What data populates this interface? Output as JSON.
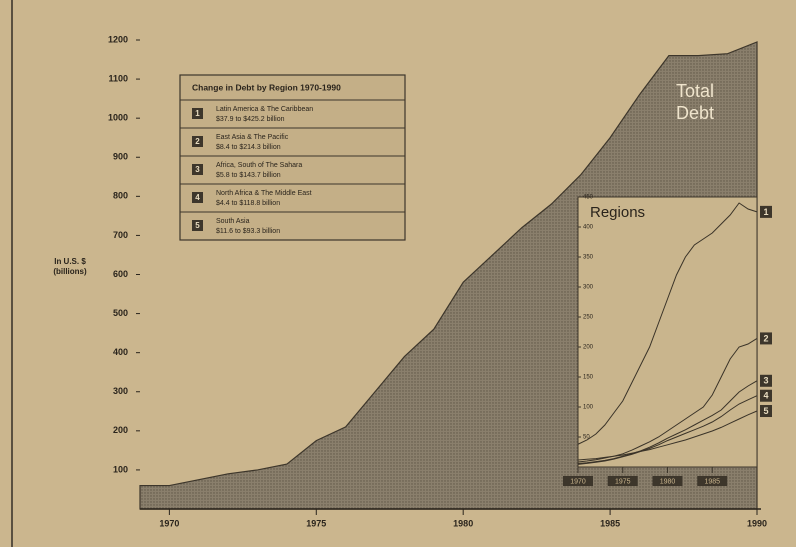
{
  "chart_data": [
    {
      "type": "area",
      "y_label": [
        "In U.S. $",
        "(billions)"
      ],
      "annotation_lines": [
        "Total",
        "Debt"
      ],
      "x": [
        1969,
        1970,
        1971,
        1972,
        1973,
        1974,
        1975,
        1976,
        1977,
        1978,
        1979,
        1980,
        1981,
        1982,
        1983,
        1984,
        1985,
        1986,
        1987,
        1988,
        1989,
        1990
      ],
      "values": [
        60,
        60,
        75,
        90,
        100,
        115,
        175,
        210,
        300,
        390,
        460,
        580,
        650,
        720,
        780,
        855,
        950,
        1060,
        1160,
        1160,
        1165,
        1195
      ],
      "color": "#8a7f6c",
      "xlim": [
        1969,
        1990
      ],
      "xticks": [
        1970,
        1975,
        1980,
        1985,
        1990
      ],
      "ylim": [
        0,
        1200
      ],
      "yticks": [
        100,
        200,
        300,
        400,
        500,
        600,
        700,
        800,
        900,
        1000,
        1100,
        1200
      ]
    },
    {
      "type": "line",
      "title": "Regions",
      "legend_title": "Change in Debt by Region  1970-1990",
      "x": [
        1970,
        1971,
        1972,
        1973,
        1974,
        1975,
        1976,
        1977,
        1978,
        1979,
        1980,
        1981,
        1982,
        1983,
        1984,
        1985,
        1986,
        1987,
        1988,
        1989,
        1990
      ],
      "series": [
        {
          "name": "1",
          "region": "Latin America & The Caribbean",
          "change": "$37.9 to $425.2 billion",
          "color": "#3a3328",
          "values": [
            37.9,
            45,
            55,
            70,
            90,
            110,
            140,
            170,
            200,
            240,
            280,
            320,
            350,
            370,
            380,
            390,
            405,
            420,
            440,
            430,
            425.2
          ]
        },
        {
          "name": "2",
          "region": "East Asia & The Pacific",
          "change": "$8.4 to $214.3 billion",
          "color": "#3a3328",
          "values": [
            8.4,
            10,
            12,
            15,
            18,
            22,
            28,
            35,
            42,
            50,
            60,
            70,
            80,
            90,
            100,
            120,
            150,
            180,
            200,
            205,
            214.3
          ]
        },
        {
          "name": "3",
          "region": "Africa, South of The Sahara",
          "change": "$5.8 to $143.7 billion",
          "color": "#3a3328",
          "values": [
            5.8,
            7,
            9,
            11,
            14,
            18,
            22,
            27,
            33,
            40,
            48,
            55,
            62,
            70,
            78,
            86,
            95,
            110,
            125,
            135,
            143.7
          ]
        },
        {
          "name": "4",
          "region": "North Africa & The Middle East",
          "change": "$4.4 to $118.8 billion",
          "color": "#3a3328",
          "values": [
            4.4,
            6,
            8,
            10,
            13,
            17,
            21,
            26,
            31,
            37,
            44,
            50,
            56,
            62,
            68,
            75,
            84,
            95,
            105,
            112,
            118.8
          ]
        },
        {
          "name": "5",
          "region": "South Asia",
          "change": "$11.6 to $93.3 billion",
          "color": "#3a3328",
          "values": [
            11.6,
            13,
            14,
            16,
            18,
            20,
            23,
            26,
            29,
            33,
            37,
            41,
            45,
            50,
            55,
            60,
            66,
            73,
            80,
            87,
            93.3
          ]
        }
      ],
      "xlim": [
        1970,
        1990
      ],
      "xticks": [
        1970,
        1975,
        1980,
        1985
      ],
      "ylim": [
        0,
        450
      ],
      "yticks": [
        50,
        100,
        150,
        200,
        250,
        300,
        350,
        400,
        450
      ]
    }
  ]
}
